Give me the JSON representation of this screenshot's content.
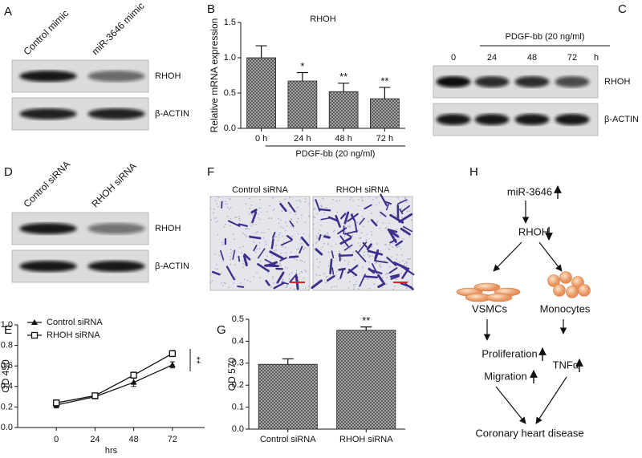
{
  "chart_data": [
    {
      "label": "B",
      "type": "bar",
      "title": "RHOH",
      "y_label": "Relative mRNA expression",
      "categories": [
        "0 h",
        "24 h",
        "48 h",
        "72 h"
      ],
      "values": [
        1.0,
        0.67,
        0.52,
        0.42
      ],
      "errors": [
        0.17,
        0.12,
        0.12,
        0.16
      ],
      "annotations": [
        null,
        "*",
        "**",
        "**"
      ],
      "group_label": "PDGF-bb (20 ng/ml)",
      "ylim": [
        0,
        1.5
      ],
      "yticks": [
        {
          "value": 0,
          "label": "0.0"
        },
        {
          "value": 0.5,
          "label": "0.5"
        },
        {
          "value": 1.0,
          "label": "1.0"
        },
        {
          "value": 1.5,
          "label": "1.5"
        }
      ],
      "color": "#8a8a8a"
    },
    {
      "label": "E",
      "type": "line",
      "x_label": "hrs",
      "y_label": "OD 450",
      "x": [
        0,
        24,
        48,
        72
      ],
      "series": [
        {
          "name": "Control siRNA",
          "color": "#111111",
          "marker": "triangle",
          "values": [
            0.22,
            0.3,
            0.44,
            0.61
          ],
          "errors": [
            0.03,
            0.02,
            0.04,
            0.03
          ]
        },
        {
          "name": "RHOH siRNA",
          "color": "#111111",
          "marker": "square",
          "values": [
            0.24,
            0.31,
            0.51,
            0.72
          ],
          "errors": [
            0.03,
            0.02,
            0.03,
            0.03
          ]
        }
      ],
      "annotation": "**",
      "legend": "upper left",
      "xlim": [
        -24,
        92
      ],
      "xticks": [
        0,
        24,
        48,
        72
      ],
      "ylim": [
        0,
        1.0
      ],
      "yticks": [
        {
          "value": 0,
          "label": "0.0"
        },
        {
          "value": 0.2,
          "label": "0.2"
        },
        {
          "value": 0.4,
          "label": "0.4"
        },
        {
          "value": 0.6,
          "label": "0.6"
        },
        {
          "value": 0.8,
          "label": "0.8"
        },
        {
          "value": 1.0,
          "label": "1.0"
        }
      ]
    },
    {
      "label": "G",
      "type": "bar",
      "y_label": "OD 570",
      "categories": [
        "Control siRNA",
        "RHOH siRNA"
      ],
      "values": [
        0.295,
        0.45
      ],
      "errors": [
        0.025,
        0.015
      ],
      "annotations": [
        null,
        "**"
      ],
      "ylim": [
        0,
        0.5
      ],
      "yticks": [
        {
          "value": 0,
          "label": "0.0"
        },
        {
          "value": 0.1,
          "label": "0.1"
        },
        {
          "value": 0.2,
          "label": "0.2"
        },
        {
          "value": 0.3,
          "label": "0.3"
        },
        {
          "value": 0.4,
          "label": "0.4"
        },
        {
          "value": 0.5,
          "label": "0.5"
        }
      ],
      "color": "#8a8a8a"
    }
  ],
  "blots": [
    {
      "label": "A",
      "lanes": [
        "Control mimic",
        "miR-3646 mimic"
      ],
      "bands": [
        "RHOH",
        "β-ACTIN"
      ]
    },
    {
      "label": "C",
      "treatment": "PDGF-bb (20 ng/ml)",
      "lanes": [
        "0",
        "24",
        "48",
        "72"
      ],
      "unit": "h",
      "bands": [
        "RHOH",
        "β-ACTIN"
      ]
    },
    {
      "label": "D",
      "lanes": [
        "Control siRNA",
        "RHOH siRNA"
      ],
      "bands": [
        "RHOH",
        "β-ACTIN"
      ]
    }
  ],
  "images": {
    "label": "F",
    "captions": [
      "Control siRNA",
      "RHOH siRNA"
    ]
  },
  "diagram": {
    "label": "H",
    "nodes": [
      "miR-3646",
      "RHOH",
      "VSMCs",
      "Monocytes",
      "Proliferation",
      "Migration",
      "TNFα",
      "Coronary heart disease"
    ]
  }
}
